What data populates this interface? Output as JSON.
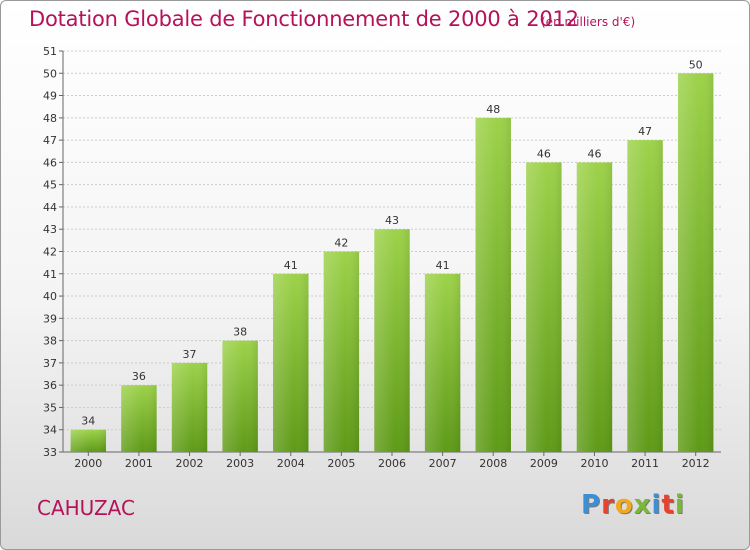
{
  "title": "Dotation Globale de Fonctionnement de 2000 à 2012",
  "unit_note": "(en milliers d'€)",
  "town": "CAHUZAC",
  "logo": {
    "letters": [
      "P",
      "r",
      "o",
      "x",
      "i",
      "t",
      "i"
    ],
    "colors": [
      "#3b8fd6",
      "#e8422f",
      "#f2a81d",
      "#7bb83a",
      "#3b8fd6",
      "#e8422f",
      "#7bb83a"
    ]
  },
  "chart_data": {
    "type": "bar",
    "title": "Dotation Globale de Fonctionnement de 2000 à 2012",
    "subtitle": "(en milliers d'€)",
    "categories": [
      "2000",
      "2001",
      "2002",
      "2003",
      "2004",
      "2005",
      "2006",
      "2007",
      "2008",
      "2009",
      "2010",
      "2011",
      "2012"
    ],
    "values": [
      34,
      36,
      37,
      38,
      41,
      42,
      43,
      41,
      48,
      46,
      46,
      47,
      50
    ],
    "ylim": [
      33,
      51
    ],
    "yticks": [
      33,
      34,
      35,
      36,
      37,
      38,
      39,
      40,
      41,
      42,
      43,
      44,
      45,
      46,
      47,
      48,
      49,
      50,
      51
    ],
    "grid": true,
    "colors": {
      "bar_top": "#9dd24a",
      "bar_bottom": "#5e9a17",
      "grid": "#cccccc"
    }
  }
}
